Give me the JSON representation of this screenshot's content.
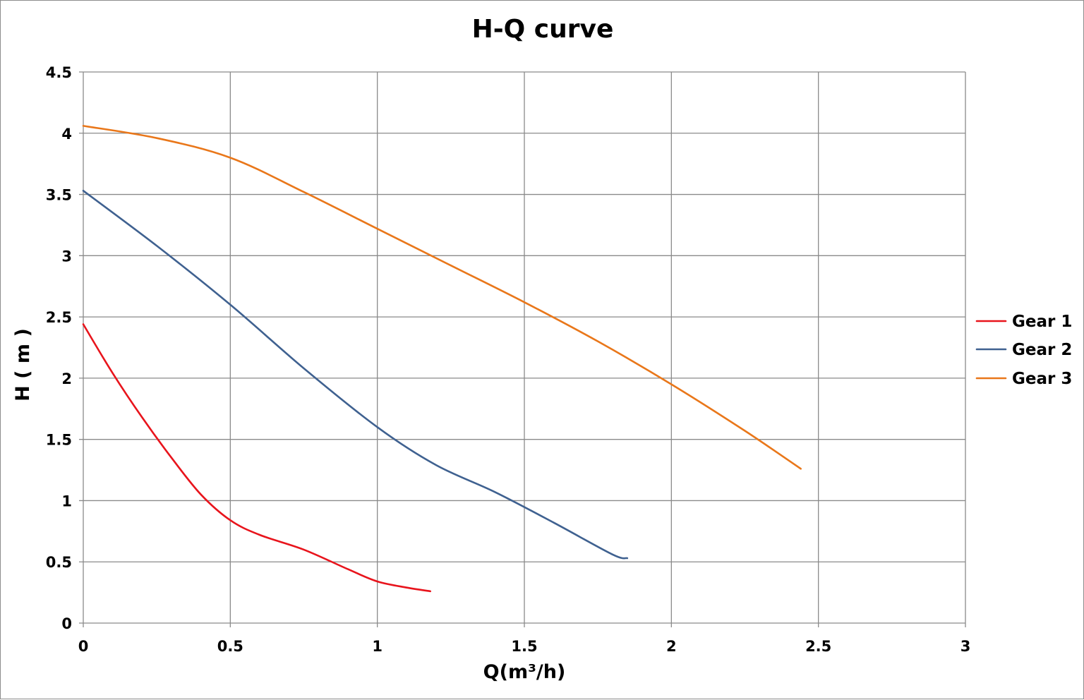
{
  "chart_data": {
    "type": "line",
    "title": "H-Q  curve",
    "xlabel": "Q(m³/h)",
    "ylabel": "H ( m )",
    "xlim": [
      0,
      3
    ],
    "ylim": [
      0,
      4.5
    ],
    "xticks": [
      0,
      0.5,
      1,
      1.5,
      2,
      2.5,
      3
    ],
    "xtick_labels": [
      "0",
      "0.5",
      "1",
      "1.5",
      "2",
      "2.5",
      "3"
    ],
    "yticks": [
      0,
      0.5,
      1,
      1.5,
      2,
      2.5,
      3,
      3.5,
      4,
      4.5
    ],
    "ytick_labels": [
      "0",
      "0.5",
      "1",
      "1.5",
      "2",
      "2.5",
      "3",
      "3.5",
      "4",
      "4.5"
    ],
    "grid": true,
    "legend_position": "right",
    "series": [
      {
        "name": "Gear 1",
        "color": "#e8141c",
        "x": [
          0,
          0.1,
          0.2,
          0.3,
          0.4,
          0.5,
          0.6,
          0.75,
          0.9,
          1.0,
          1.1,
          1.18
        ],
        "y": [
          2.44,
          2.04,
          1.68,
          1.35,
          1.05,
          0.84,
          0.72,
          0.6,
          0.44,
          0.34,
          0.29,
          0.26
        ]
      },
      {
        "name": "Gear 2",
        "color": "#3f6190",
        "x": [
          0,
          0.25,
          0.5,
          0.75,
          1.0,
          1.2,
          1.4,
          1.6,
          1.8,
          1.85
        ],
        "y": [
          3.53,
          3.08,
          2.6,
          2.08,
          1.6,
          1.29,
          1.07,
          0.82,
          0.56,
          0.53
        ]
      },
      {
        "name": "Gear 3",
        "color": "#e9771a",
        "x": [
          0,
          0.25,
          0.5,
          0.75,
          1.0,
          1.25,
          1.5,
          1.75,
          2.0,
          2.25,
          2.44
        ],
        "y": [
          4.06,
          3.96,
          3.8,
          3.52,
          3.22,
          2.92,
          2.62,
          2.3,
          1.95,
          1.57,
          1.26
        ]
      }
    ]
  }
}
